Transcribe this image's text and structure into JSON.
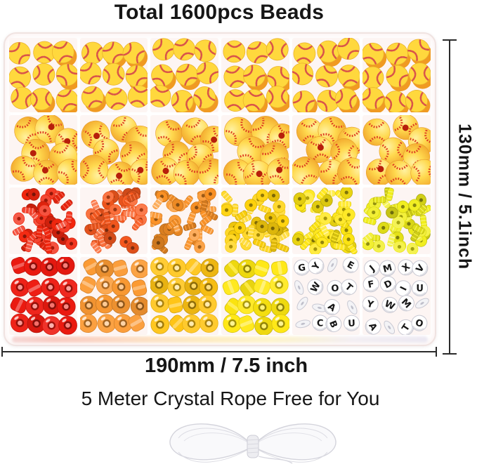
{
  "title": "Total 1600pcs Beads",
  "dimensions": {
    "height": "130mm / 5.1inch",
    "width": "190mm / 7.5 inch"
  },
  "freebie_text": "5 Meter Crystal Rope Free for You",
  "box": {
    "rows": [
      {
        "type": "softball_disc",
        "cells": 6
      },
      {
        "type": "softball_ball",
        "cells": 6
      },
      {
        "type": "heishi_disc",
        "cell_colors": [
          "#f3270f",
          "#fa5a1f",
          "#fb9226",
          "#ffd30d",
          "#ffe713",
          "#f1ee1b"
        ]
      },
      {
        "type": "pony_mixed",
        "cell_colors": [
          "#ee1b11",
          "#fb9a33",
          "#ffc414",
          "#ffe811"
        ],
        "letter_cells": 2
      }
    ],
    "letter_beads": [
      "G",
      "Y",
      "E",
      "W",
      "O",
      "T",
      "A",
      "C",
      "B",
      "U",
      "J",
      "M",
      "X",
      "V",
      "F",
      "D",
      "I",
      "U",
      "Y",
      "W",
      "M",
      "A",
      "T",
      "O"
    ]
  },
  "palette": {
    "softball_body": "#ffd83d",
    "softball_under": "#f09a22",
    "softball_edge": "#eab32c",
    "softball_stitch": "#d9544a",
    "ball_stitch": "#dd3a22",
    "ball_hole": "#b71f0b",
    "letter_bead": "#ffffff",
    "letter_text": "#161616",
    "letter_shade": "#c8c8d2",
    "line_color": "#2b2b2b",
    "cell_bg": "#fdf5f3",
    "rope_stroke": "#d4d4dc"
  }
}
